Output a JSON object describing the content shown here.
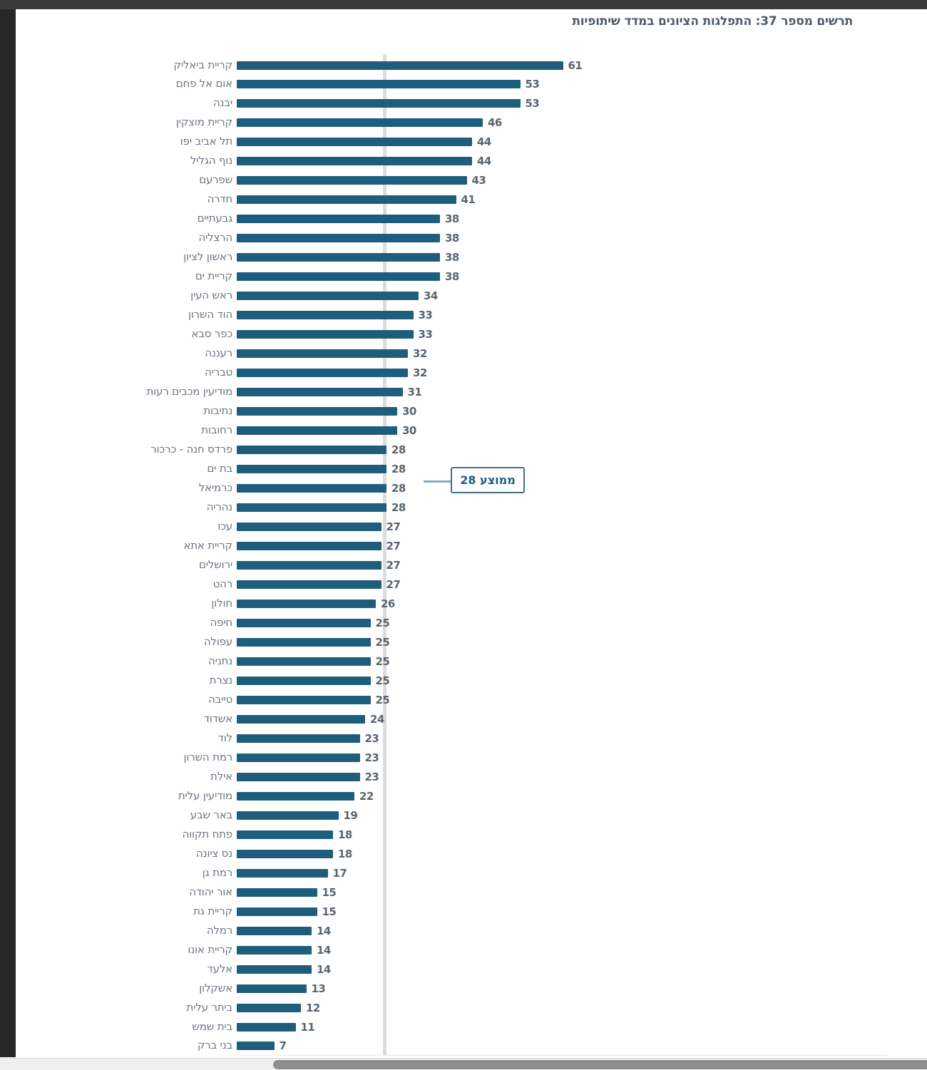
{
  "page": {
    "title": "תרשים מספר 37: התפלגות הציונים במדד שיתופיות"
  },
  "chart_data": {
    "type": "bar",
    "orientation": "horizontal",
    "title": "תרשים מספר 37: התפלגות הציונים במדד שיתופיות",
    "categories": [
      "קריית ביאליק",
      "אום אל פחם",
      "יבנה",
      "קריית מוצקין",
      "תל אביב יפו",
      "נוף הגליל",
      "שפרעם",
      "חדרה",
      "גבעתיים",
      "הרצליה",
      "ראשון לציון",
      "קריית ים",
      "ראש העין",
      "הוד השרון",
      "כפר סבא",
      "רעננה",
      "טבריה",
      "מודיעין מכבים רעות",
      "נתיבות",
      "רחובות",
      "פרדס חנה - כרכור",
      "בת ים",
      "כרמיאל",
      "נהריה",
      "עכו",
      "קריית אתא",
      "ירושלים",
      "רהט",
      "חולון",
      "חיפה",
      "עפולה",
      "נתניה",
      "נצרת",
      "טייבה",
      "אשדוד",
      "לוד",
      "רמת השרון",
      "אילת",
      "מודיעין עלית",
      "באר שבע",
      "פתח תקווה",
      "נס ציונה",
      "רמת גן",
      "אור יהודה",
      "קריית גת",
      "רמלה",
      "קריית אונו",
      "אלעד",
      "אשקלון",
      "ביתר עלית",
      "בית שמש",
      "בני ברק"
    ],
    "values": [
      61,
      53,
      53,
      46,
      44,
      44,
      43,
      41,
      38,
      38,
      38,
      38,
      34,
      33,
      33,
      32,
      32,
      31,
      30,
      30,
      28,
      28,
      28,
      28,
      27,
      27,
      27,
      27,
      26,
      25,
      25,
      25,
      25,
      25,
      24,
      23,
      23,
      23,
      22,
      19,
      18,
      18,
      17,
      15,
      15,
      14,
      14,
      14,
      13,
      12,
      11,
      7
    ],
    "xlim": [
      0,
      65
    ],
    "bar_color": "#1f5d7d",
    "average": {
      "value": 28,
      "label": "ממוצע 28",
      "line_color": "#dcdcdc"
    },
    "legend": null,
    "grid": false
  }
}
